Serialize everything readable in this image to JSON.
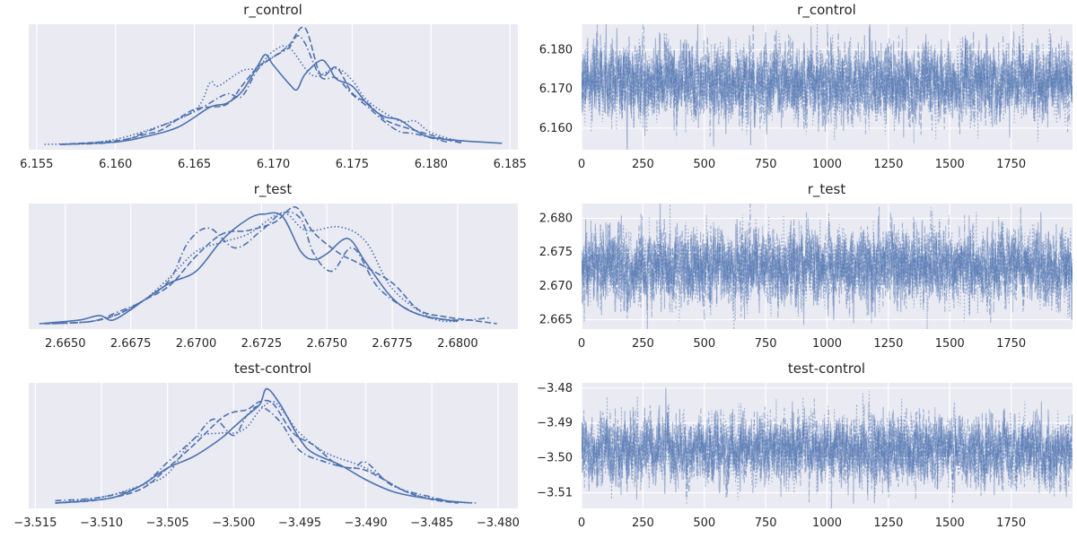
{
  "chart_data": [
    {
      "type": "line",
      "kind": "kde",
      "title": "r_control",
      "xlim": [
        6.1545,
        6.1855
      ],
      "xticks": [
        "6.155",
        "6.160",
        "6.165",
        "6.170",
        "6.175",
        "6.180",
        "6.185"
      ],
      "yticks_shown": false,
      "grid": true,
      "series": [
        {
          "style": "solid",
          "x": [
            6.1565,
            6.16,
            6.162,
            6.164,
            6.166,
            6.167,
            6.168,
            6.169,
            6.1695,
            6.17,
            6.171,
            6.1715,
            6.172,
            6.173,
            6.1735,
            6.174,
            6.175,
            6.176,
            6.177,
            6.178,
            6.179,
            6.18,
            6.182,
            6.1845
          ],
          "y": [
            0.0,
            0.02,
            0.07,
            0.15,
            0.32,
            0.35,
            0.45,
            0.67,
            0.77,
            0.68,
            0.52,
            0.47,
            0.6,
            0.72,
            0.67,
            0.56,
            0.5,
            0.34,
            0.24,
            0.21,
            0.12,
            0.06,
            0.03,
            0.01
          ]
        },
        {
          "style": "dashed",
          "x": [
            6.1565,
            6.16,
            6.162,
            6.163,
            6.165,
            6.167,
            6.168,
            6.169,
            6.17,
            6.171,
            6.172,
            6.173,
            6.174,
            6.175,
            6.176,
            6.177,
            6.178,
            6.18,
            6.181,
            6.182
          ],
          "y": [
            0.0,
            0.03,
            0.09,
            0.13,
            0.3,
            0.34,
            0.5,
            0.66,
            0.75,
            0.85,
            1.0,
            0.6,
            0.66,
            0.44,
            0.35,
            0.22,
            0.16,
            0.08,
            0.04,
            0.01
          ]
        },
        {
          "style": "dotted",
          "x": [
            6.1555,
            6.159,
            6.162,
            6.165,
            6.166,
            6.1665,
            6.168,
            6.169,
            6.17,
            6.171,
            6.1725,
            6.174,
            6.175,
            6.176,
            6.178,
            6.179,
            6.18,
            6.182
          ],
          "y": [
            0.0,
            0.02,
            0.12,
            0.29,
            0.53,
            0.5,
            0.63,
            0.66,
            0.8,
            0.83,
            0.59,
            0.65,
            0.55,
            0.37,
            0.2,
            0.2,
            0.1,
            0.02
          ]
        },
        {
          "style": "dashdot",
          "x": [
            6.1565,
            6.16,
            6.162,
            6.165,
            6.167,
            6.168,
            6.169,
            6.17,
            6.171,
            6.1715,
            6.172,
            6.173,
            6.174,
            6.175,
            6.176,
            6.177,
            6.178,
            6.179,
            6.181
          ],
          "y": [
            0.0,
            0.02,
            0.11,
            0.28,
            0.43,
            0.41,
            0.64,
            0.75,
            0.83,
            0.93,
            0.87,
            0.58,
            0.57,
            0.43,
            0.32,
            0.2,
            0.11,
            0.09,
            0.02
          ]
        }
      ]
    },
    {
      "type": "line",
      "kind": "trace",
      "title": "r_control",
      "xlim": [
        0,
        2000
      ],
      "ylim": [
        6.1545,
        6.1865
      ],
      "xticks": [
        "0",
        "250",
        "500",
        "750",
        "1000",
        "1250",
        "1500",
        "1750"
      ],
      "yticks": [
        "6.160",
        "6.170",
        "6.180"
      ],
      "grid": true,
      "n_draws": 2000,
      "series": [
        {
          "style": "solid",
          "center": 6.1715,
          "spread": 0.0045
        },
        {
          "style": "dashed",
          "center": 6.1718,
          "spread": 0.0045
        },
        {
          "style": "dotted",
          "center": 6.1712,
          "spread": 0.0047
        },
        {
          "style": "dashdot",
          "center": 6.1716,
          "spread": 0.0045
        }
      ]
    },
    {
      "type": "line",
      "kind": "kde",
      "title": "r_test",
      "xlim": [
        2.6636,
        2.6823
      ],
      "xticks": [
        "2.6650",
        "2.6675",
        "2.6700",
        "2.6725",
        "2.6750",
        "2.6775",
        "2.6800"
      ],
      "yticks_shown": false,
      "grid": true,
      "series": [
        {
          "style": "solid",
          "x": [
            2.664,
            2.6655,
            2.6663,
            2.6668,
            2.6675,
            2.668,
            2.669,
            2.67,
            2.671,
            2.672,
            2.6726,
            2.6733,
            2.674,
            2.6745,
            2.675,
            2.6758,
            2.6765,
            2.6775,
            2.6785,
            2.68
          ],
          "y": [
            0.0,
            0.03,
            0.07,
            0.03,
            0.12,
            0.2,
            0.35,
            0.45,
            0.72,
            0.9,
            0.94,
            0.92,
            0.62,
            0.55,
            0.6,
            0.73,
            0.52,
            0.22,
            0.08,
            0.02
          ]
        },
        {
          "style": "dashed",
          "x": [
            2.6645,
            2.666,
            2.667,
            2.668,
            2.669,
            2.67,
            2.671,
            2.672,
            2.673,
            2.6738,
            2.6745,
            2.6755,
            2.6762,
            2.6775,
            2.6785,
            2.6795,
            2.6805,
            2.6815
          ],
          "y": [
            0.0,
            0.02,
            0.08,
            0.2,
            0.33,
            0.58,
            0.77,
            0.8,
            0.87,
            1.0,
            0.78,
            0.6,
            0.52,
            0.35,
            0.12,
            0.06,
            0.03,
            0.0
          ]
        },
        {
          "style": "dotted",
          "x": [
            2.6642,
            2.666,
            2.6672,
            2.668,
            2.669,
            2.67,
            2.671,
            2.672,
            2.6733,
            2.6742,
            2.6755,
            2.6765,
            2.6775,
            2.679,
            2.68
          ],
          "y": [
            0.0,
            0.02,
            0.1,
            0.2,
            0.4,
            0.62,
            0.7,
            0.77,
            0.95,
            0.8,
            0.83,
            0.7,
            0.3,
            0.05,
            0.02
          ]
        },
        {
          "style": "dashdot",
          "x": [
            2.6642,
            2.666,
            2.667,
            2.668,
            2.669,
            2.6697,
            2.6705,
            2.6715,
            2.6725,
            2.6733,
            2.674,
            2.6745,
            2.6752,
            2.676,
            2.677,
            2.6785,
            2.68,
            2.6812
          ],
          "y": [
            0.0,
            0.02,
            0.1,
            0.2,
            0.38,
            0.7,
            0.82,
            0.65,
            0.8,
            0.95,
            0.9,
            0.6,
            0.45,
            0.65,
            0.3,
            0.08,
            0.03,
            0.05
          ]
        }
      ]
    },
    {
      "type": "line",
      "kind": "trace",
      "title": "r_test",
      "xlim": [
        0,
        2000
      ],
      "ylim": [
        2.6636,
        2.6822
      ],
      "xticks": [
        "0",
        "250",
        "500",
        "750",
        "1000",
        "1250",
        "1500",
        "1750"
      ],
      "yticks": [
        "2.665",
        "2.670",
        "2.675",
        "2.680"
      ],
      "grid": true,
      "n_draws": 2000,
      "series": [
        {
          "style": "solid",
          "center": 2.6728,
          "spread": 0.0026
        },
        {
          "style": "dashed",
          "center": 2.673,
          "spread": 0.0027
        },
        {
          "style": "dotted",
          "center": 2.6731,
          "spread": 0.0028
        },
        {
          "style": "dashdot",
          "center": 2.6727,
          "spread": 0.0026
        }
      ]
    },
    {
      "type": "line",
      "kind": "kde",
      "title": "test-control",
      "xlim": [
        -3.5155,
        -3.4785
      ],
      "xticks": [
        "−3.515",
        "−3.510",
        "−3.505",
        "−3.500",
        "−3.495",
        "−3.490",
        "−3.485",
        "−3.480"
      ],
      "yticks_shown": false,
      "grid": true,
      "series": [
        {
          "style": "solid",
          "x": [
            -3.5135,
            -3.511,
            -3.509,
            -3.507,
            -3.505,
            -3.503,
            -3.501,
            -3.5,
            -3.499,
            -3.498,
            -3.4975,
            -3.4965,
            -3.495,
            -3.494,
            -3.492,
            -3.49,
            -3.488,
            -3.486,
            -3.484,
            -3.482
          ],
          "y": [
            0.0,
            0.02,
            0.05,
            0.15,
            0.3,
            0.4,
            0.55,
            0.65,
            0.75,
            0.85,
            0.98,
            0.85,
            0.55,
            0.43,
            0.33,
            0.2,
            0.1,
            0.05,
            0.02,
            0.0
          ]
        },
        {
          "style": "dashed",
          "x": [
            -3.5135,
            -3.51,
            -3.507,
            -3.505,
            -3.503,
            -3.501,
            -3.5,
            -3.499,
            -3.498,
            -3.497,
            -3.4955,
            -3.494,
            -3.492,
            -3.49,
            -3.487,
            -3.485,
            -3.483
          ],
          "y": [
            0.0,
            0.03,
            0.12,
            0.3,
            0.5,
            0.72,
            0.78,
            0.8,
            0.87,
            0.85,
            0.6,
            0.5,
            0.32,
            0.28,
            0.1,
            0.03,
            0.0
          ]
        },
        {
          "style": "dotted",
          "x": [
            -3.5135,
            -3.51,
            -3.507,
            -3.505,
            -3.503,
            -3.501,
            -3.5,
            -3.499,
            -3.498,
            -3.497,
            -3.496,
            -3.495,
            -3.493,
            -3.49,
            -3.487,
            -3.484,
            -3.4815
          ],
          "y": [
            0.0,
            0.05,
            0.15,
            0.25,
            0.55,
            0.6,
            0.6,
            0.65,
            0.8,
            0.87,
            0.75,
            0.6,
            0.43,
            0.3,
            0.1,
            0.02,
            0.0
          ]
        },
        {
          "style": "dashdot",
          "x": [
            -3.5135,
            -3.51,
            -3.507,
            -3.505,
            -3.503,
            -3.5015,
            -3.5,
            -3.499,
            -3.498,
            -3.4965,
            -3.495,
            -3.493,
            -3.491,
            -3.49,
            -3.488,
            -3.485,
            -3.483
          ],
          "y": [
            0.02,
            0.05,
            0.15,
            0.35,
            0.55,
            0.72,
            0.58,
            0.75,
            0.83,
            0.7,
            0.45,
            0.35,
            0.3,
            0.35,
            0.15,
            0.05,
            0.0
          ]
        }
      ]
    },
    {
      "type": "line",
      "kind": "trace",
      "title": "test-control",
      "xlim": [
        0,
        2000
      ],
      "ylim": [
        -3.5145,
        -3.4785
      ],
      "xticks": [
        "0",
        "250",
        "500",
        "750",
        "1000",
        "1250",
        "1500",
        "1750"
      ],
      "yticks": [
        "−3.48",
        "−3.49",
        "−3.50",
        "−3.51"
      ],
      "grid": true,
      "n_draws": 2000,
      "series": [
        {
          "style": "solid",
          "center": -3.4978,
          "spread": 0.0045
        },
        {
          "style": "dashed",
          "center": -3.498,
          "spread": 0.0046
        },
        {
          "style": "dotted",
          "center": -3.4976,
          "spread": 0.0048
        },
        {
          "style": "dashdot",
          "center": -3.4979,
          "spread": 0.0045
        }
      ]
    }
  ]
}
